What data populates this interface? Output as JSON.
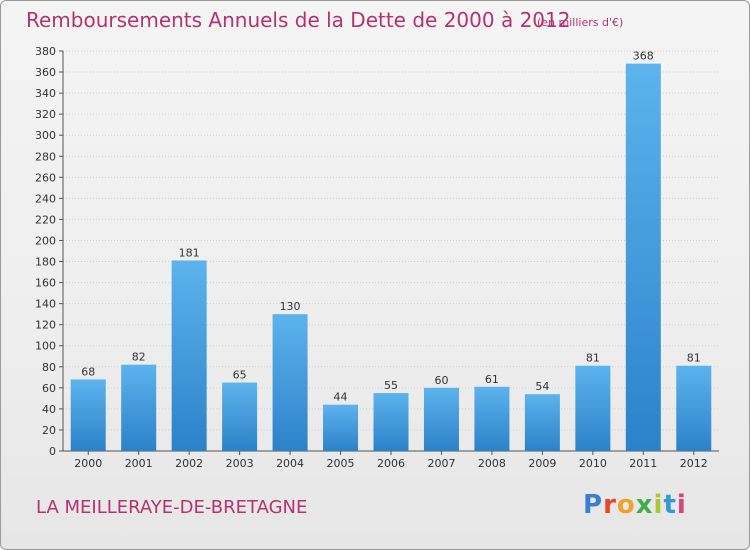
{
  "header": {
    "title": "Remboursements Annuels de la Dette de 2000 à 2012",
    "subtitle": "(en milliers d'€)"
  },
  "footer": {
    "commune": "LA MEILLERAYE-DE-BRETAGNE",
    "logo_text": "Proxiti",
    "logo_colors": [
      "#3a7fd0",
      "#e8452b",
      "#f2a12b",
      "#3fae49",
      "#a8c934",
      "#2f9ad8",
      "#d9427e"
    ]
  },
  "colors": {
    "accent": "#b5326e",
    "bar_top": "#5db3ec",
    "bar_bottom": "#2c82c9"
  },
  "chart_data": {
    "type": "bar",
    "title": "Remboursements Annuels de la Dette de 2000 à 2012",
    "subtitle": "(en milliers d'€)",
    "categories": [
      "2000",
      "2001",
      "2002",
      "2003",
      "2004",
      "2005",
      "2006",
      "2007",
      "2008",
      "2009",
      "2010",
      "2011",
      "2012"
    ],
    "values": [
      68,
      82,
      181,
      65,
      130,
      44,
      55,
      60,
      61,
      54,
      81,
      368,
      81
    ],
    "ylim": [
      0,
      380
    ],
    "yticks": [
      0,
      20,
      40,
      60,
      80,
      100,
      120,
      140,
      160,
      180,
      200,
      220,
      240,
      260,
      280,
      300,
      320,
      340,
      360,
      380
    ],
    "grid": true,
    "xlabel": "",
    "ylabel": ""
  }
}
